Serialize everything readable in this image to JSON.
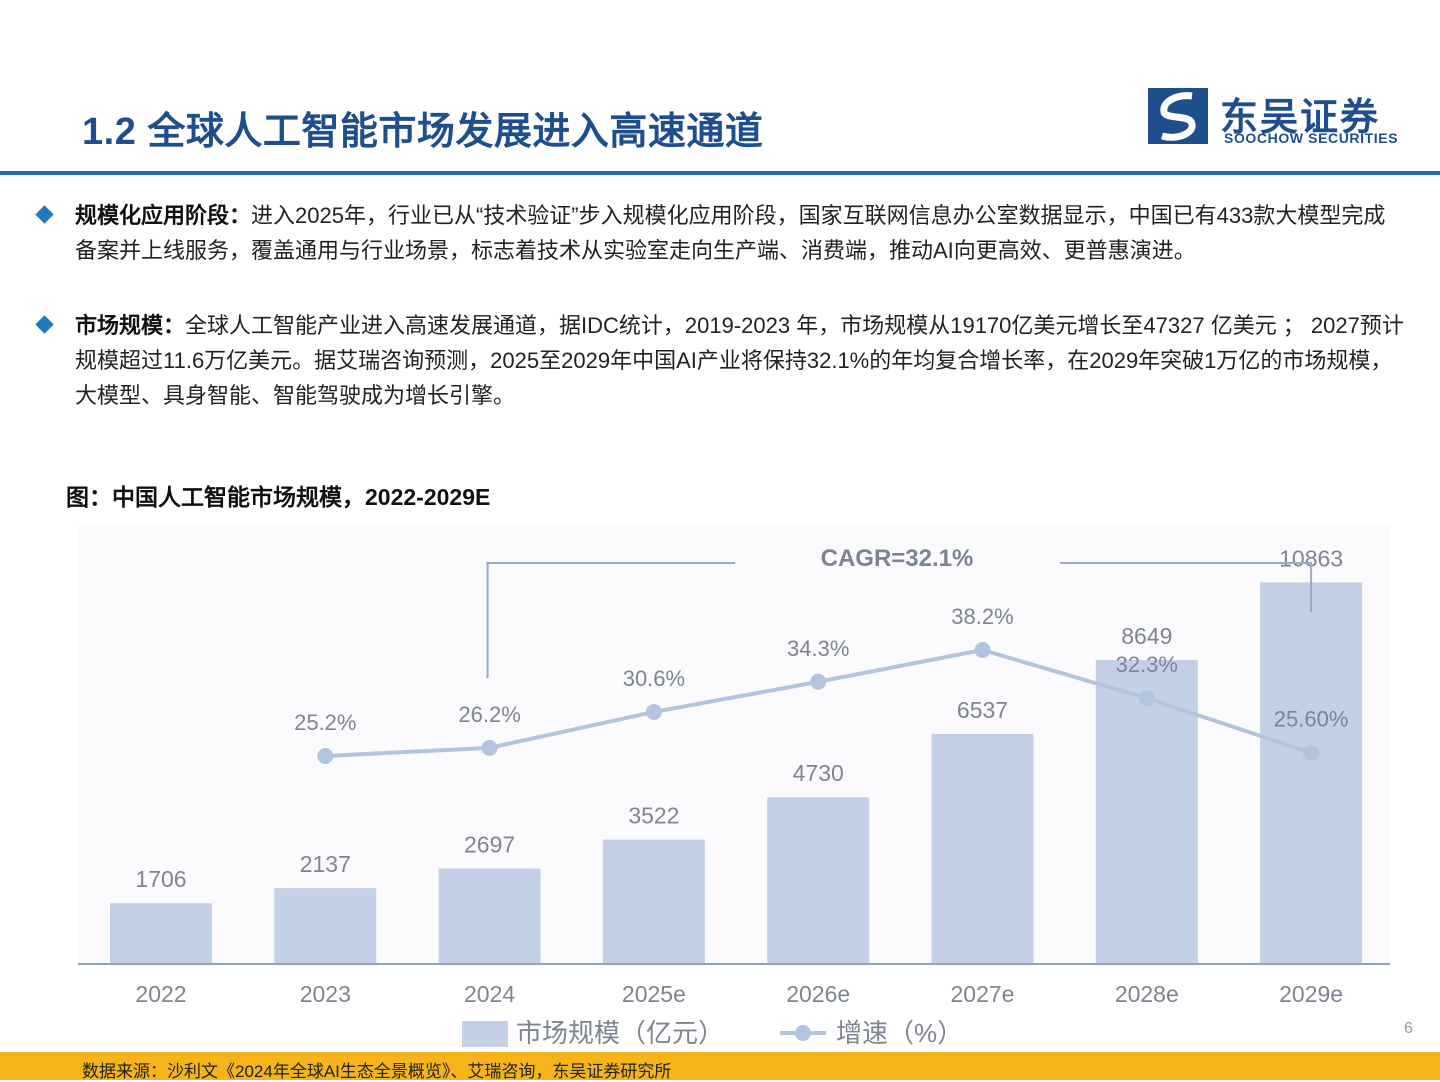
{
  "header": {
    "title": "1.2 全球人工智能市场发展进入高速通道",
    "logo_cn": "东吴证券",
    "logo_en": "SOOCHOW SECURITIES"
  },
  "bullets": [
    {
      "heading": "规模化应用阶段：",
      "text": "进入2025年，行业已从“技术验证”步入规模化应用阶段，国家互联网信息办公室数据显示，中国已有433款大模型完成备案并上线服务，覆盖通用与行业场景，标志着技术从实验室走向生产端、消费端，推动AI向更高效、更普惠演进。"
    },
    {
      "heading": "市场规模：",
      "text": "全球人工智能产业进入高速发展通道，据IDC统计，2019-2023 年，市场规模从19170亿美元增长至47327 亿美元 ； 2027预计规模超过11.6万亿美元。据艾瑞咨询预测，2025至2029年中国AI产业将保持32.1%的年均复合增长率，在2029年突破1万亿的市场规模，大模型、具身智能、智能驾驶成为增长引擎。"
    }
  ],
  "figure_title": "图：中国人工智能市场规模，2022-2029E",
  "chart_data": {
    "type": "bar",
    "categories": [
      "2022",
      "2023",
      "2024",
      "2025e",
      "2026e",
      "2027e",
      "2028e",
      "2029e"
    ],
    "series": [
      {
        "name": "市场规模（亿元）",
        "type": "bar",
        "values": [
          1706,
          2137,
          2697,
          3522,
          4730,
          6537,
          8649,
          10863
        ],
        "labels": [
          "1706",
          "2137",
          "2697",
          "3522",
          "4730",
          "6537",
          "8649",
          "10863"
        ],
        "color": "#c3d0e6"
      },
      {
        "name": "增速（%）",
        "type": "line",
        "x": [
          "2023",
          "2024",
          "2025e",
          "2026e",
          "2027e",
          "2028e",
          "2029e"
        ],
        "values": [
          25.2,
          26.2,
          30.6,
          34.3,
          38.2,
          32.3,
          25.6
        ],
        "labels": [
          "25.2%",
          "26.2%",
          "30.6%",
          "34.3%",
          "38.2%",
          "32.3%",
          "25.60%"
        ],
        "color": "#b3c4df"
      }
    ],
    "annotation": "CAGR=32.1%",
    "legend_position": "bottom",
    "grid": false,
    "ylim_bar": [
      0,
      11500
    ],
    "ylim_line": [
      0,
      50
    ]
  },
  "page_number": "6",
  "footer_source": "数据来源：沙利文《2024年全球AI生态全景概览》、艾瑞咨询，东吴证券研究所",
  "colors": {
    "brand_blue": "#1f4e8c",
    "rule_blue": "#1f6fb6",
    "footer_yellow": "#f4b41a",
    "label_gray": "#7d8592"
  }
}
